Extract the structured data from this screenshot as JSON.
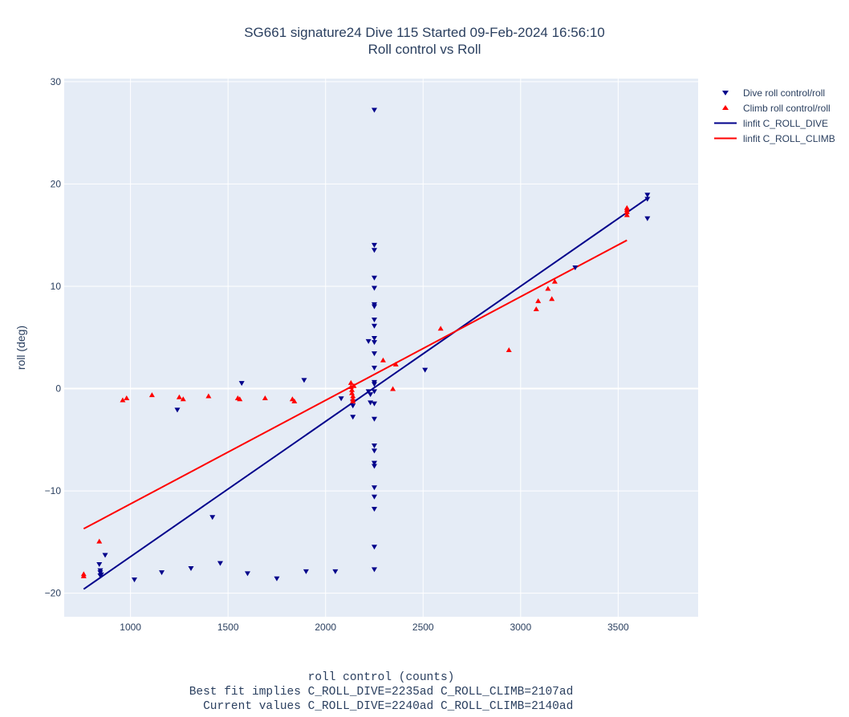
{
  "title_line1": "SG661 signature24 Dive 115 Started 09-Feb-2024 16:56:10",
  "title_line2": "Roll control vs Roll",
  "xlabel_line1": "roll control (counts)",
  "xlabel_line2": "Best fit implies C_ROLL_DIVE=2235ad C_ROLL_CLIMB=2107ad",
  "xlabel_line3": "  Current values C_ROLL_DIVE=2240ad C_ROLL_CLIMB=2140ad",
  "ylabel": "roll (deg)",
  "legend": [
    {
      "label": "Dive roll control/roll",
      "color": "#00008b",
      "symbol": "triangle-down"
    },
    {
      "label": "Climb roll control/roll",
      "color": "#ff0000",
      "symbol": "triangle-up"
    },
    {
      "label": "linfit C_ROLL_DIVE",
      "color": "#00008b",
      "symbol": "line"
    },
    {
      "label": "linfit C_ROLL_CLIMB",
      "color": "#ff0000",
      "symbol": "line"
    }
  ],
  "chart_data": {
    "type": "scatter",
    "title": "SG661 signature24 Dive 115 Started 09-Feb-2024 16:56:10 / Roll control vs Roll",
    "xlabel": "roll control (counts)",
    "ylabel": "roll (deg)",
    "xlim": [
      660,
      3910
    ],
    "ylim": [
      -22.3,
      30.3
    ],
    "xticks": [
      1000,
      1500,
      2000,
      2500,
      3000,
      3500
    ],
    "yticks": [
      -20,
      -10,
      0,
      10,
      20,
      30
    ],
    "grid": true,
    "legend_position": "top-right",
    "background": "#e5ecf6",
    "series": [
      {
        "name": "Dive roll control/roll",
        "type": "scatter",
        "marker": "triangle-down",
        "color": "#00008b",
        "points": [
          [
            840,
            -17.2
          ],
          [
            845,
            -17.8
          ],
          [
            845,
            -18.0
          ],
          [
            845,
            -18.3
          ],
          [
            850,
            -18.2
          ],
          [
            870,
            -16.3
          ],
          [
            1020,
            -18.7
          ],
          [
            1160,
            -18.0
          ],
          [
            1240,
            -2.1
          ],
          [
            1310,
            -17.6
          ],
          [
            1420,
            -12.6
          ],
          [
            1460,
            -17.1
          ],
          [
            1570,
            0.5
          ],
          [
            1600,
            -18.1
          ],
          [
            1750,
            -18.6
          ],
          [
            1890,
            0.8
          ],
          [
            1900,
            -17.9
          ],
          [
            2050,
            -17.9
          ],
          [
            2080,
            -1.0
          ],
          [
            2140,
            -1.3
          ],
          [
            2140,
            -1.7
          ],
          [
            2140,
            -2.8
          ],
          [
            2220,
            4.6
          ],
          [
            2220,
            -0.3
          ],
          [
            2230,
            -0.6
          ],
          [
            2230,
            -1.4
          ],
          [
            2250,
            27.2
          ],
          [
            2250,
            14.0
          ],
          [
            2250,
            13.5
          ],
          [
            2250,
            10.8
          ],
          [
            2250,
            9.8
          ],
          [
            2250,
            8.2
          ],
          [
            2250,
            8.0
          ],
          [
            2250,
            6.7
          ],
          [
            2250,
            6.1
          ],
          [
            2250,
            4.9
          ],
          [
            2250,
            4.5
          ],
          [
            2250,
            3.4
          ],
          [
            2250,
            2.0
          ],
          [
            2250,
            0.6
          ],
          [
            2250,
            0.4
          ],
          [
            2250,
            -0.3
          ],
          [
            2250,
            -1.5
          ],
          [
            2250,
            -3.0
          ],
          [
            2250,
            -5.6
          ],
          [
            2250,
            -6.1
          ],
          [
            2250,
            -7.3
          ],
          [
            2250,
            -7.6
          ],
          [
            2250,
            -9.7
          ],
          [
            2250,
            -10.6
          ],
          [
            2250,
            -11.8
          ],
          [
            2250,
            -15.5
          ],
          [
            2250,
            -17.7
          ],
          [
            2510,
            1.8
          ],
          [
            3280,
            11.8
          ],
          [
            3650,
            18.9
          ],
          [
            3650,
            18.5
          ],
          [
            3650,
            16.6
          ]
        ]
      },
      {
        "name": "Climb roll control/roll",
        "type": "scatter",
        "marker": "triangle-up",
        "color": "#ff0000",
        "points": [
          [
            760,
            -18.1
          ],
          [
            760,
            -18.3
          ],
          [
            840,
            -14.9
          ],
          [
            960,
            -1.1
          ],
          [
            980,
            -0.9
          ],
          [
            1110,
            -0.6
          ],
          [
            1250,
            -0.8
          ],
          [
            1270,
            -1.0
          ],
          [
            1400,
            -0.7
          ],
          [
            1550,
            -0.9
          ],
          [
            1560,
            -1.0
          ],
          [
            1690,
            -0.9
          ],
          [
            1830,
            -1.0
          ],
          [
            1840,
            -1.2
          ],
          [
            2130,
            0.6
          ],
          [
            2130,
            0.2
          ],
          [
            2135,
            -0.1
          ],
          [
            2135,
            -0.4
          ],
          [
            2140,
            -0.7
          ],
          [
            2140,
            -1.0
          ],
          [
            2140,
            -1.2
          ],
          [
            2145,
            0.3
          ],
          [
            2295,
            2.8
          ],
          [
            2345,
            0.0
          ],
          [
            2360,
            2.4
          ],
          [
            2590,
            5.9
          ],
          [
            2940,
            3.8
          ],
          [
            3080,
            7.8
          ],
          [
            3090,
            8.6
          ],
          [
            3140,
            9.8
          ],
          [
            3160,
            8.8
          ],
          [
            3175,
            10.5
          ],
          [
            3545,
            17.0
          ],
          [
            3545,
            17.3
          ],
          [
            3545,
            17.5
          ],
          [
            3545,
            17.7
          ]
        ]
      },
      {
        "name": "linfit C_ROLL_DIVE",
        "type": "line",
        "color": "#00008b",
        "points": [
          [
            760,
            -19.6
          ],
          [
            3650,
            18.6
          ]
        ]
      },
      {
        "name": "linfit C_ROLL_CLIMB",
        "type": "line",
        "color": "#ff0000",
        "points": [
          [
            760,
            -13.7
          ],
          [
            3545,
            14.5
          ]
        ]
      }
    ]
  }
}
